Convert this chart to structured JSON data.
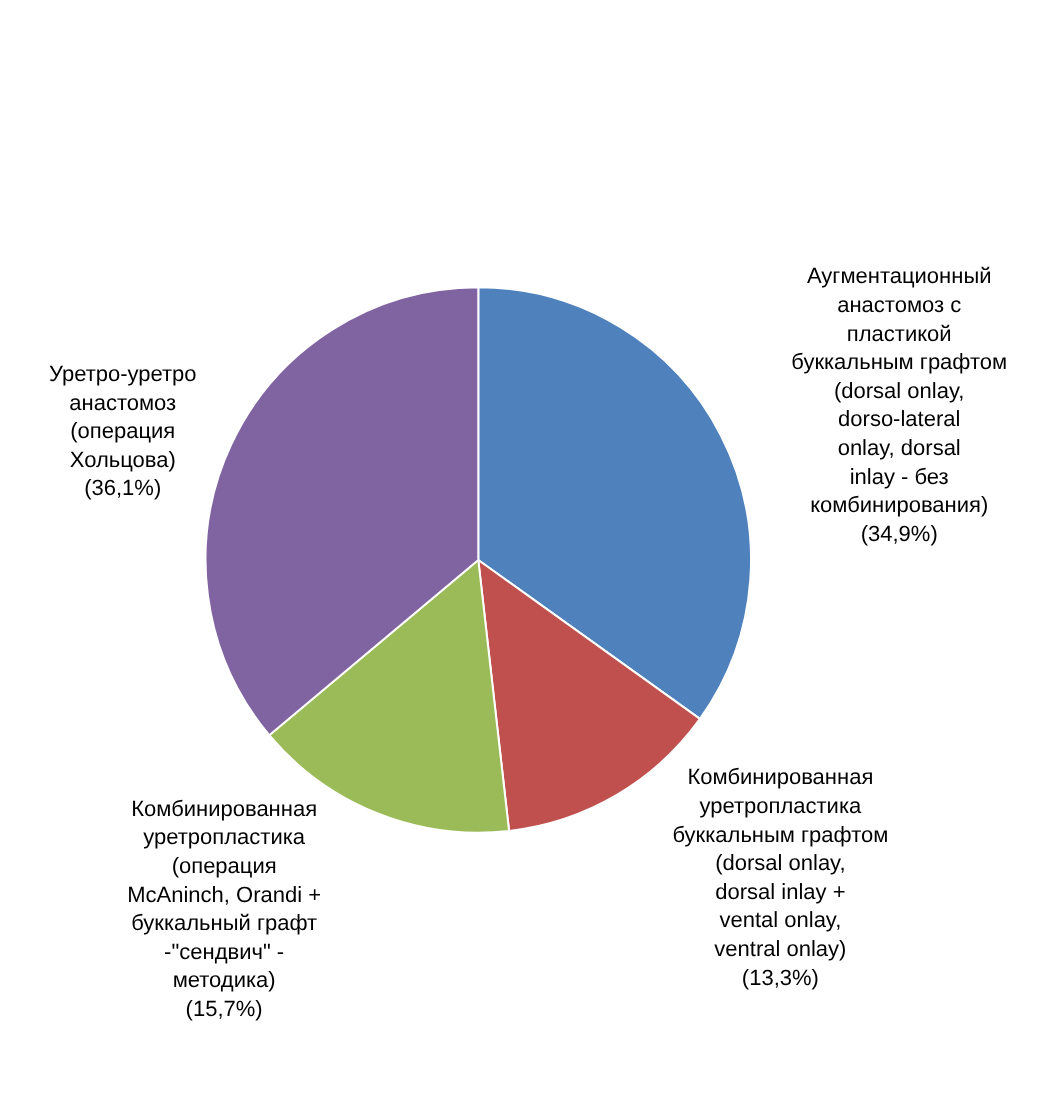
{
  "chart_data": {
    "type": "pie",
    "categories": [
      "Аугментационный анастомоз с пластикой буккальным графтом (dorsal onlay, dorso-lateral onlay, dorsal inlay - без комбинирования)",
      "Комбинированная уретропластика буккальным графтом (dorsal onlay, dorsal inlay + vental onlay, ventral onlay)",
      "Комбинированная уретропластика (операция McAninch, Orandi + буккальный графт -\"сендвич\" - методика)",
      "Уретро-уретро анастомоз (операция Хольцова)"
    ],
    "values": [
      34.9,
      13.3,
      15.7,
      36.1
    ],
    "value_labels": [
      "(34,9%)",
      "(13,3%)",
      "(15,7%)",
      "(36,1%)"
    ],
    "colors": [
      "#4f81bd",
      "#c0504d",
      "#9bbb59",
      "#8064a2"
    ],
    "legend": false
  }
}
